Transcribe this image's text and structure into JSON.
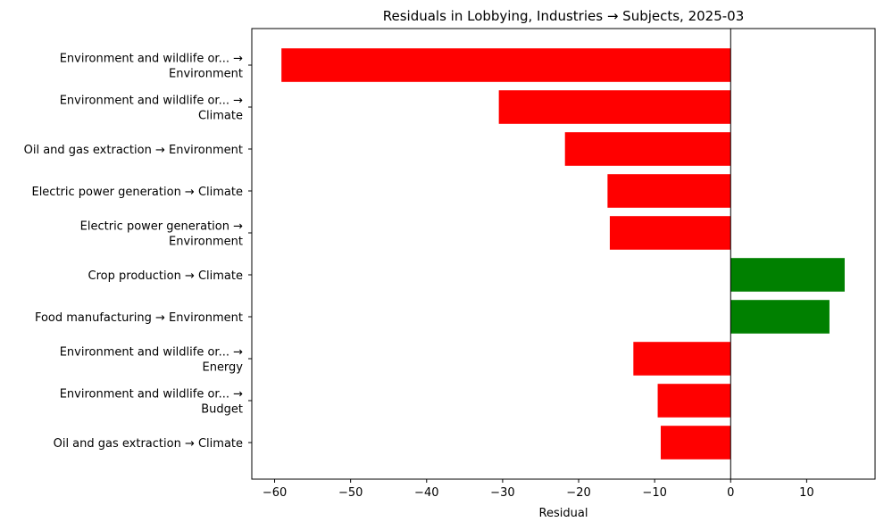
{
  "chart_data": {
    "type": "bar",
    "orientation": "horizontal",
    "title": "Residuals in Lobbying, Industries → Subjects, 2025-03",
    "xlabel": "Residual",
    "ylabel": "",
    "xlim": [
      -63,
      19
    ],
    "xticks": [
      -60,
      -50,
      -40,
      -30,
      -20,
      -10,
      0,
      10
    ],
    "xtick_labels": [
      "−60",
      "−50",
      "−40",
      "−30",
      "−20",
      "−10",
      "0",
      "10"
    ],
    "grid": false,
    "legend": "none",
    "categories": [
      [
        "Environment and wildlife or... →",
        "Environment"
      ],
      [
        "Environment and wildlife or... →",
        "Climate"
      ],
      [
        "Oil and gas extraction → Environment"
      ],
      [
        "Electric power generation → Climate"
      ],
      [
        "Electric power generation →",
        "Environment"
      ],
      [
        "Crop production → Climate"
      ],
      [
        "Food manufacturing → Environment"
      ],
      [
        "Environment and wildlife or... →",
        "Energy"
      ],
      [
        "Environment and wildlife or... →",
        "Budget"
      ],
      [
        "Oil and gas extraction → Climate"
      ]
    ],
    "values": [
      -59.1,
      -30.5,
      -21.8,
      -16.2,
      -15.9,
      15.0,
      13.0,
      -12.8,
      -9.6,
      -9.2
    ],
    "colors": {
      "negative": "#ff0000",
      "positive": "#008000",
      "zero_line": "#000000"
    }
  }
}
